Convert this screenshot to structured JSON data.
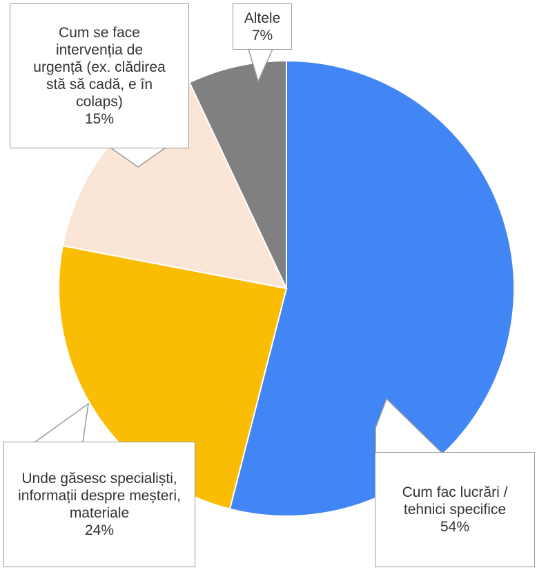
{
  "chart_data": {
    "type": "pie",
    "categories": [
      "Cum fac lucrări / tehnici specifice",
      "Unde găsesc specialiști, informații despre meșteri, materiale",
      "Cum se face intervenția de urgență (ex. clădirea stă să cadă, e în colaps)",
      "Altele"
    ],
    "values": [
      54,
      24,
      15,
      7
    ],
    "value_labels": [
      "54%",
      "24%",
      "15%",
      "7%"
    ],
    "colors": [
      "#4285f4",
      "#fbbc04",
      "#fbe5d6",
      "#808080"
    ]
  }
}
